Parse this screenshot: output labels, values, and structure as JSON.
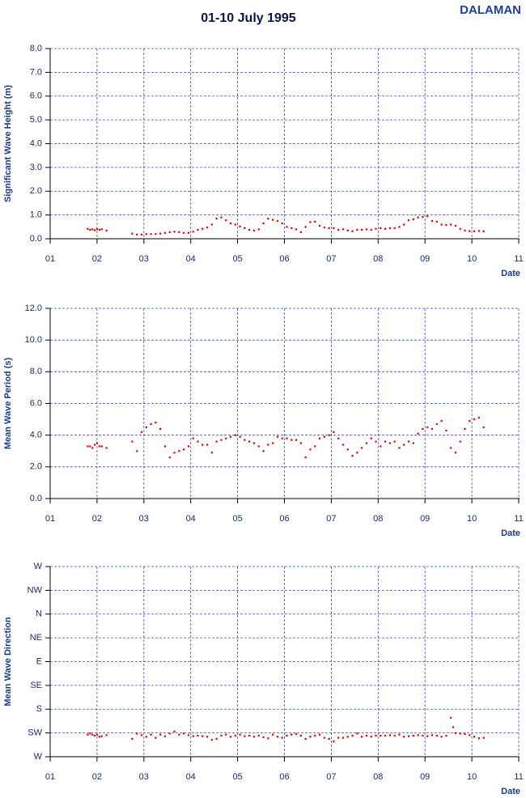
{
  "header": {
    "title": "01-10 July 1995",
    "site": "DALAMAN"
  },
  "chart_data": [
    {
      "type": "scatter",
      "y_label": "Significant Wave Height (m)",
      "x_label": "Date",
      "color": "#e00000",
      "grid": true,
      "xlim": [
        1,
        11
      ],
      "xticks": [
        {
          "value": 1,
          "label": "01"
        },
        {
          "value": 2,
          "label": "02"
        },
        {
          "value": 3,
          "label": "03"
        },
        {
          "value": 4,
          "label": "04"
        },
        {
          "value": 5,
          "label": "05"
        },
        {
          "value": 6,
          "label": "06"
        },
        {
          "value": 7,
          "label": "07"
        },
        {
          "value": 8,
          "label": "08"
        },
        {
          "value": 9,
          "label": "09"
        },
        {
          "value": 10,
          "label": "10"
        },
        11
      ],
      "ylim": [
        0,
        8
      ],
      "yticks": [
        {
          "value": 0,
          "label": "0.0"
        },
        {
          "value": 1,
          "label": "1.0"
        },
        {
          "value": 2,
          "label": "2.0"
        },
        {
          "value": 3,
          "label": "3.0"
        },
        {
          "value": 4,
          "label": "4.0"
        },
        {
          "value": 5,
          "label": "5.0"
        },
        {
          "value": 6,
          "label": "6.0"
        },
        {
          "value": 7,
          "label": "7.0"
        },
        {
          "value": 8,
          "label": "8.0"
        }
      ],
      "x": [
        1.8,
        1.85,
        1.9,
        1.95,
        2.0,
        2.05,
        2.1,
        2.2,
        2.75,
        2.85,
        2.95,
        3.05,
        3.15,
        3.25,
        3.35,
        3.45,
        3.55,
        3.65,
        3.75,
        3.85,
        3.95,
        4.05,
        4.15,
        4.25,
        4.35,
        4.45,
        4.55,
        4.65,
        4.75,
        4.85,
        4.95,
        5.05,
        5.15,
        5.25,
        5.35,
        5.45,
        5.55,
        5.65,
        5.75,
        5.85,
        5.95,
        6.05,
        6.15,
        6.25,
        6.35,
        6.45,
        6.55,
        6.65,
        6.75,
        6.85,
        6.95,
        7.05,
        7.15,
        7.25,
        7.35,
        7.45,
        7.55,
        7.65,
        7.75,
        7.85,
        7.95,
        8.05,
        8.15,
        8.25,
        8.35,
        8.45,
        8.55,
        8.65,
        8.75,
        8.85,
        8.95,
        9.05,
        9.15,
        9.25,
        9.35,
        9.45,
        9.55,
        9.65,
        9.75,
        9.85,
        9.95,
        10.05,
        10.15,
        10.25
      ],
      "values": [
        0.42,
        0.38,
        0.4,
        0.36,
        0.41,
        0.38,
        0.4,
        0.35,
        0.22,
        0.18,
        0.18,
        0.2,
        0.2,
        0.2,
        0.22,
        0.25,
        0.28,
        0.3,
        0.28,
        0.25,
        0.25,
        0.3,
        0.38,
        0.42,
        0.48,
        0.6,
        0.85,
        0.9,
        0.78,
        0.65,
        0.6,
        0.52,
        0.45,
        0.38,
        0.35,
        0.4,
        0.65,
        0.85,
        0.8,
        0.75,
        0.65,
        0.5,
        0.45,
        0.4,
        0.28,
        0.5,
        0.7,
        0.72,
        0.55,
        0.48,
        0.45,
        0.45,
        0.38,
        0.4,
        0.35,
        0.32,
        0.38,
        0.38,
        0.4,
        0.38,
        0.42,
        0.45,
        0.42,
        0.45,
        0.45,
        0.5,
        0.6,
        0.78,
        0.82,
        0.9,
        0.92,
        0.95,
        0.75,
        0.72,
        0.6,
        0.58,
        0.6,
        0.55,
        0.42,
        0.35,
        0.32,
        0.32,
        0.33,
        0.32
      ]
    },
    {
      "type": "scatter",
      "y_label": "Mean Wave Period (s)",
      "x_label": "Date",
      "color": "#e00000",
      "grid": true,
      "xlim": [
        1,
        11
      ],
      "xticks": [
        {
          "value": 1,
          "label": "01"
        },
        {
          "value": 2,
          "label": "02"
        },
        {
          "value": 3,
          "label": "03"
        },
        {
          "value": 4,
          "label": "04"
        },
        {
          "value": 5,
          "label": "05"
        },
        {
          "value": 6,
          "label": "06"
        },
        {
          "value": 7,
          "label": "07"
        },
        {
          "value": 8,
          "label": "08"
        },
        {
          "value": 9,
          "label": "09"
        },
        {
          "value": 10,
          "label": "10"
        },
        11
      ],
      "ylim": [
        0,
        12
      ],
      "yticks": [
        {
          "value": 0,
          "label": "0.0"
        },
        {
          "value": 2,
          "label": "2.0"
        },
        {
          "value": 4,
          "label": "4.0"
        },
        {
          "value": 6,
          "label": "6.0"
        },
        {
          "value": 8,
          "label": "8.0"
        },
        {
          "value": 10,
          "label": "10.0"
        },
        {
          "value": 12,
          "label": "12.0"
        }
      ],
      "x": [
        1.8,
        1.85,
        1.9,
        1.95,
        2.0,
        2.05,
        2.1,
        2.2,
        2.75,
        2.85,
        2.95,
        3.05,
        3.15,
        3.25,
        3.35,
        3.45,
        3.55,
        3.65,
        3.75,
        3.85,
        3.95,
        4.05,
        4.15,
        4.25,
        4.35,
        4.45,
        4.55,
        4.65,
        4.75,
        4.85,
        4.95,
        5.05,
        5.15,
        5.25,
        5.35,
        5.45,
        5.55,
        5.65,
        5.75,
        5.85,
        5.95,
        6.05,
        6.15,
        6.25,
        6.35,
        6.45,
        6.55,
        6.65,
        6.75,
        6.85,
        6.95,
        7.05,
        7.15,
        7.25,
        7.35,
        7.45,
        7.55,
        7.65,
        7.75,
        7.85,
        7.95,
        8.05,
        8.15,
        8.25,
        8.35,
        8.45,
        8.55,
        8.65,
        8.75,
        8.85,
        8.95,
        9.05,
        9.15,
        9.25,
        9.35,
        9.45,
        9.55,
        9.65,
        9.75,
        9.85,
        9.95,
        10.05,
        10.15,
        10.25
      ],
      "values": [
        3.3,
        3.3,
        3.2,
        3.4,
        3.5,
        3.3,
        3.3,
        3.2,
        3.6,
        3.0,
        4.2,
        4.5,
        4.7,
        4.8,
        4.4,
        3.3,
        2.6,
        2.9,
        3.0,
        3.1,
        3.3,
        3.8,
        3.6,
        3.4,
        3.4,
        2.9,
        3.6,
        3.7,
        3.8,
        3.9,
        4.0,
        3.9,
        3.7,
        3.6,
        3.5,
        3.3,
        3.0,
        3.4,
        3.5,
        3.9,
        3.8,
        3.8,
        3.7,
        3.7,
        3.5,
        2.6,
        3.1,
        3.3,
        3.8,
        3.9,
        4.0,
        4.2,
        3.8,
        3.4,
        3.1,
        2.7,
        2.9,
        3.2,
        3.5,
        3.8,
        3.6,
        3.3,
        3.6,
        3.5,
        3.6,
        3.2,
        3.4,
        3.6,
        3.5,
        4.1,
        4.4,
        4.5,
        4.4,
        4.7,
        4.9,
        4.3,
        3.2,
        2.9,
        3.6,
        4.4,
        4.9,
        5.0,
        5.1,
        4.5
      ]
    },
    {
      "type": "scatter",
      "y_label": "Mean Wave Direction",
      "x_label": "Date",
      "color": "#e00000",
      "grid": true,
      "xlim": [
        1,
        11
      ],
      "xticks": [
        {
          "value": 1,
          "label": "01"
        },
        {
          "value": 2,
          "label": "02"
        },
        {
          "value": 3,
          "label": "03"
        },
        {
          "value": 4,
          "label": "04"
        },
        {
          "value": 5,
          "label": "05"
        },
        {
          "value": 6,
          "label": "06"
        },
        {
          "value": 7,
          "label": "07"
        },
        {
          "value": 8,
          "label": "08"
        },
        {
          "value": 9,
          "label": "09"
        },
        {
          "value": 10,
          "label": "10"
        },
        11
      ],
      "ylim": [
        270,
        -90
      ],
      "yticks": [
        {
          "value": 270,
          "label": "W"
        },
        {
          "value": 225,
          "label": "SW"
        },
        {
          "value": 180,
          "label": "S"
        },
        {
          "value": 135,
          "label": "SE"
        },
        {
          "value": 90,
          "label": "E"
        },
        {
          "value": 45,
          "label": "NE"
        },
        {
          "value": 0,
          "label": "N"
        },
        {
          "value": -45,
          "label": "NW"
        },
        {
          "value": -90,
          "label": "W"
        }
      ],
      "x": [
        1.8,
        1.85,
        1.9,
        1.95,
        2.0,
        2.05,
        2.1,
        2.2,
        2.75,
        2.85,
        2.95,
        3.05,
        3.15,
        3.25,
        3.35,
        3.45,
        3.55,
        3.65,
        3.75,
        3.85,
        3.95,
        4.05,
        4.15,
        4.25,
        4.35,
        4.45,
        4.55,
        4.65,
        4.75,
        4.85,
        4.95,
        5.05,
        5.15,
        5.25,
        5.35,
        5.45,
        5.55,
        5.65,
        5.75,
        5.85,
        5.95,
        6.05,
        6.15,
        6.25,
        6.35,
        6.45,
        6.55,
        6.65,
        6.75,
        6.85,
        6.95,
        7.05,
        7.15,
        7.25,
        7.35,
        7.45,
        7.55,
        7.65,
        7.75,
        7.85,
        7.95,
        8.05,
        8.15,
        8.25,
        8.35,
        8.45,
        8.55,
        8.65,
        8.75,
        8.85,
        8.95,
        9.05,
        9.15,
        9.25,
        9.35,
        9.45,
        9.55,
        9.6,
        9.65,
        9.75,
        9.85,
        9.95,
        10.05,
        10.15,
        10.25
      ],
      "values": [
        228,
        226,
        228,
        230,
        228,
        232,
        231,
        229,
        236,
        226,
        229,
        232,
        228,
        234,
        228,
        231,
        226,
        222,
        228,
        226,
        229,
        231,
        230,
        231,
        232,
        238,
        236,
        230,
        228,
        232,
        230,
        228,
        231,
        230,
        232,
        230,
        233,
        235,
        228,
        232,
        234,
        230,
        228,
        227,
        230,
        236,
        232,
        230,
        228,
        234,
        236,
        241,
        234,
        234,
        232,
        230,
        226,
        232,
        230,
        232,
        230,
        230,
        230,
        229,
        230,
        228,
        232,
        231,
        230,
        229,
        230,
        231,
        229,
        230,
        232,
        230,
        196,
        214,
        225,
        226,
        227,
        229,
        232,
        235,
        234
      ]
    }
  ]
}
